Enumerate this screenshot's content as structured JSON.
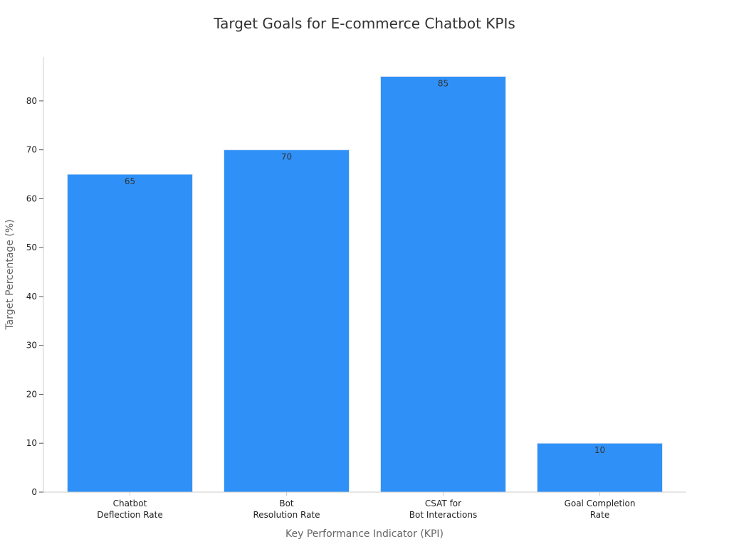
{
  "chart_data": {
    "type": "bar",
    "title": "Target Goals for E-commerce Chatbot KPIs",
    "xlabel": "Key Performance Indicator (KPI)",
    "ylabel": "Target Percentage (%)",
    "categories": [
      [
        "Chatbot",
        "Deflection Rate"
      ],
      [
        "Bot",
        "Resolution Rate"
      ],
      [
        "CSAT for",
        "Bot Interactions"
      ],
      [
        "Goal Completion",
        "Rate"
      ]
    ],
    "values": [
      65,
      70,
      85,
      10
    ],
    "data_labels": [
      "65",
      "70",
      "85",
      "10"
    ],
    "yticks": [
      0,
      10,
      20,
      30,
      40,
      50,
      60,
      70,
      80
    ],
    "ylim": [
      0,
      89
    ],
    "grid": false,
    "legend": "none",
    "colors": {
      "bar": "#2f91f8",
      "bar_edge": "#dde6f0",
      "axis": "#cccccc",
      "title": "#333333",
      "tick_label": "#222222",
      "axis_label": "#666666",
      "data_label": "#333333"
    }
  }
}
